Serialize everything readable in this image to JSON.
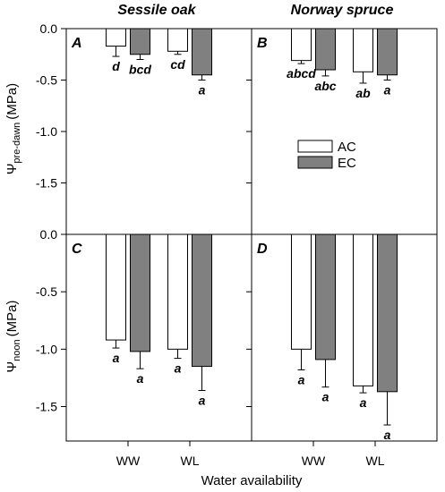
{
  "chart_data": {
    "type": "bar",
    "categories": [
      "WW",
      "WL"
    ],
    "xlabel": "Water availability",
    "columns": [
      "Sessile oak",
      "Norway spruce"
    ],
    "legend": {
      "placement": "center-right of panel B",
      "entries": [
        "AC",
        "EC"
      ]
    },
    "colors": {
      "AC": "#ffffff",
      "EC": "#808080"
    },
    "rows": [
      {
        "ylabel_main": "Ψ",
        "ylabel_sub": "pre-dawn",
        "ylabel_unit": "(MPa)",
        "ylim": [
          -2.0,
          0.0
        ],
        "yticks": [
          "0.0",
          "-0.5",
          "-1.0",
          "-1.5"
        ],
        "ytick_values": [
          0.0,
          -0.5,
          -1.0,
          -1.5
        ]
      },
      {
        "ylabel_main": "Ψ",
        "ylabel_sub": "noon",
        "ylabel_unit": "(MPa)",
        "ylim": [
          -1.8,
          0.0
        ],
        "yticks": [
          "0.0",
          "-0.5",
          "-1.0",
          "-1.5"
        ],
        "ytick_values": [
          0.0,
          -0.5,
          -1.0,
          -1.5
        ]
      }
    ],
    "panels": [
      {
        "label": "A",
        "row": 0,
        "col": 0,
        "series": [
          {
            "name": "AC",
            "values": [
              -0.17,
              -0.22
            ],
            "errors": [
              0.1,
              0.03
            ],
            "letters": [
              "d",
              "cd"
            ]
          },
          {
            "name": "EC",
            "values": [
              -0.25,
              -0.45
            ],
            "errors": [
              0.05,
              0.05
            ],
            "letters": [
              "bcd",
              "a"
            ]
          }
        ]
      },
      {
        "label": "B",
        "row": 0,
        "col": 1,
        "series": [
          {
            "name": "AC",
            "values": [
              -0.31,
              -0.42
            ],
            "errors": [
              0.03,
              0.11
            ],
            "letters": [
              "abcd",
              "ab"
            ]
          },
          {
            "name": "EC",
            "values": [
              -0.4,
              -0.45
            ],
            "errors": [
              0.06,
              0.05
            ],
            "letters": [
              "abc",
              "a"
            ]
          }
        ]
      },
      {
        "label": "C",
        "row": 1,
        "col": 0,
        "series": [
          {
            "name": "AC",
            "values": [
              -0.92,
              -1.0
            ],
            "errors": [
              0.07,
              0.08
            ],
            "letters": [
              "a",
              "a"
            ]
          },
          {
            "name": "EC",
            "values": [
              -1.02,
              -1.15
            ],
            "errors": [
              0.15,
              0.21
            ],
            "letters": [
              "a",
              "a"
            ]
          }
        ]
      },
      {
        "label": "D",
        "row": 1,
        "col": 1,
        "series": [
          {
            "name": "AC",
            "values": [
              -1.0,
              -1.32
            ],
            "errors": [
              0.18,
              0.06
            ],
            "letters": [
              "a",
              "a"
            ]
          },
          {
            "name": "EC",
            "values": [
              -1.09,
              -1.37
            ],
            "errors": [
              0.24,
              0.29
            ],
            "letters": [
              "a",
              "a"
            ]
          }
        ]
      }
    ]
  }
}
